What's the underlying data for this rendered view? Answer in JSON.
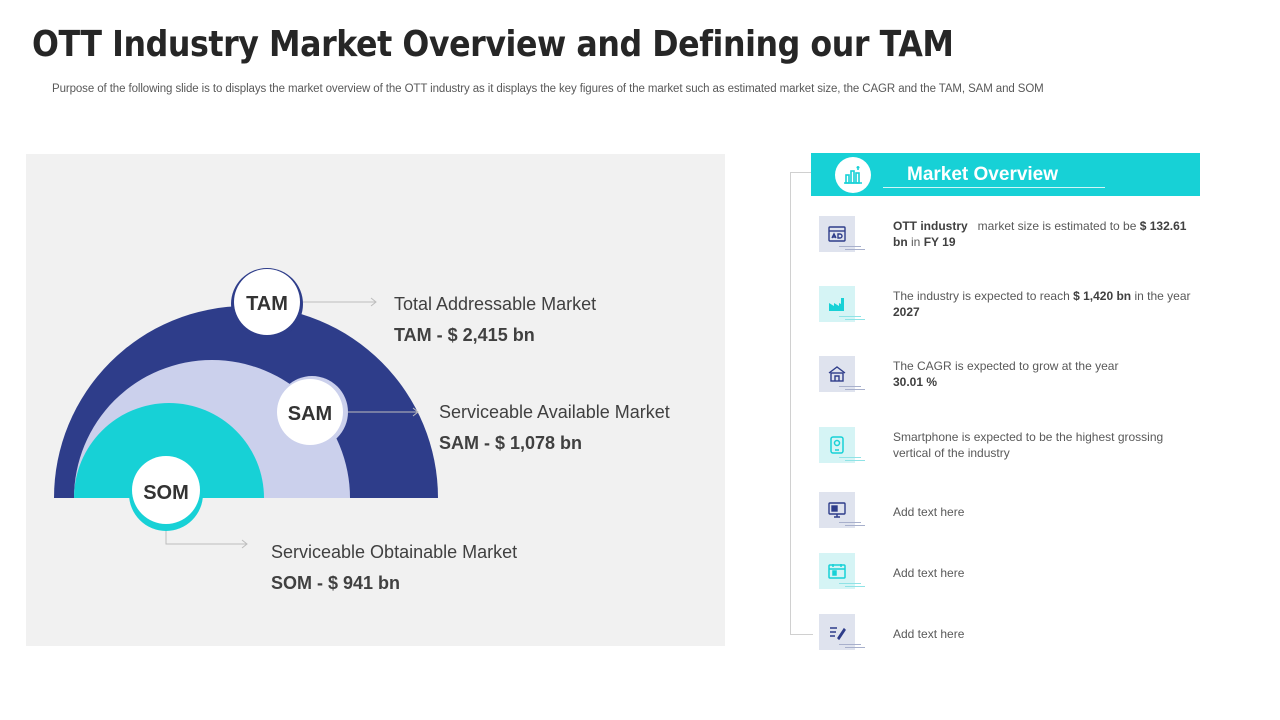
{
  "title": "OTT Industry Market Overview and Defining our TAM",
  "subtitle": "Purpose of the following slide is to displays the market overview of the OTT  industry as it displays the key figures of the market such as estimated market size, the CAGR  and the TAM,  SAM  and SOM",
  "markets": {
    "tam": {
      "abbr": "TAM",
      "name": "Total Addressable Market",
      "value": "TAM - $ 2,415 bn"
    },
    "sam": {
      "abbr": "SAM",
      "name": "Serviceable Available Market",
      "value": "SAM - $ 1,078 bn"
    },
    "som": {
      "abbr": "SOM",
      "name": "Serviceable Obtainable Market",
      "value": "SOM - $ 941 bn"
    }
  },
  "overview": {
    "title": "Market Overview",
    "items": [
      {
        "icon": "ad-icon",
        "parts": [
          {
            "t": "OTT industry",
            "b": true
          },
          {
            "t": "   market size is estimated to be ",
            "b": false
          },
          {
            "t": "$ 132.61  bn",
            "b": true
          },
          {
            "t": " in ",
            "b": false
          },
          {
            "t": "FY 19",
            "b": true
          }
        ]
      },
      {
        "icon": "factory-icon",
        "parts": [
          {
            "t": "The industry is expected to reach ",
            "b": false
          },
          {
            "t": "$ 1,420 bn",
            "b": true
          },
          {
            "t": " in the year ",
            "b": false
          },
          {
            "t": "2027",
            "b": true
          }
        ]
      },
      {
        "icon": "building-icon",
        "parts": [
          {
            "t": "The CAGR  is expected to grow at the year ",
            "b": false
          },
          {
            "t": "30.01 %",
            "b": true
          }
        ]
      },
      {
        "icon": "smartphone-icon",
        "parts": [
          {
            "t": "Smartphone  is expected to be the highest grossing vertical  of the industry",
            "b": false
          }
        ]
      },
      {
        "icon": "monitor-icon",
        "parts": [
          {
            "t": "Add text here",
            "b": false
          }
        ]
      },
      {
        "icon": "calendar-icon",
        "parts": [
          {
            "t": "Add text here",
            "b": false
          }
        ]
      },
      {
        "icon": "document-pen-icon",
        "parts": [
          {
            "t": "Add text here",
            "b": false
          }
        ]
      }
    ]
  },
  "colors": {
    "tam_ring": "#2e3d8a",
    "sam_ring": "#cbd0ec",
    "som_ring": "#17d1d6",
    "accent": "#17d1d6",
    "panel": "#f1f1f1"
  }
}
